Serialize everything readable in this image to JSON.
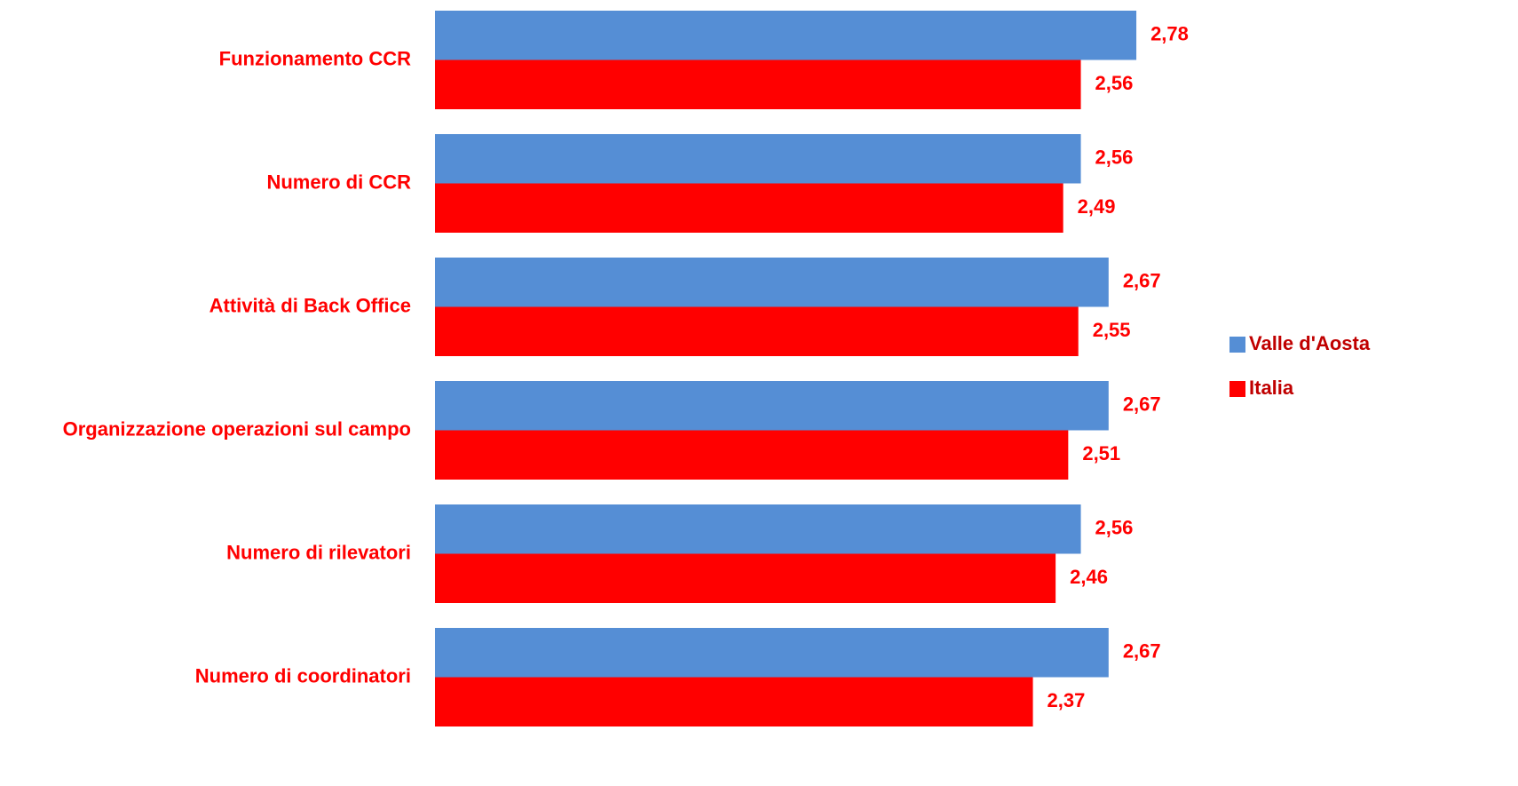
{
  "chart_data": {
    "type": "hbar",
    "categories": [
      "Funzionamento CCR",
      "Numero di CCR",
      "Attività di Back Office",
      "Organizzazione operazioni sul campo",
      "Numero di rilevatori",
      "Numero di coordinatori"
    ],
    "series": [
      {
        "name": "Valle d'Aosta",
        "color": "#558ed5",
        "values": [
          2.78,
          2.56,
          2.67,
          2.67,
          2.56,
          2.67
        ],
        "value_labels": [
          "2,78",
          "2,56",
          "2,67",
          "2,67",
          "2,56",
          "2,67"
        ]
      },
      {
        "name": "Italia",
        "color": "#ff0000",
        "values": [
          2.56,
          2.49,
          2.55,
          2.51,
          2.46,
          2.37
        ],
        "value_labels": [
          "2,56",
          "2,49",
          "2,55",
          "2,51",
          "2,46",
          "2,37"
        ]
      }
    ],
    "legend": "right"
  }
}
